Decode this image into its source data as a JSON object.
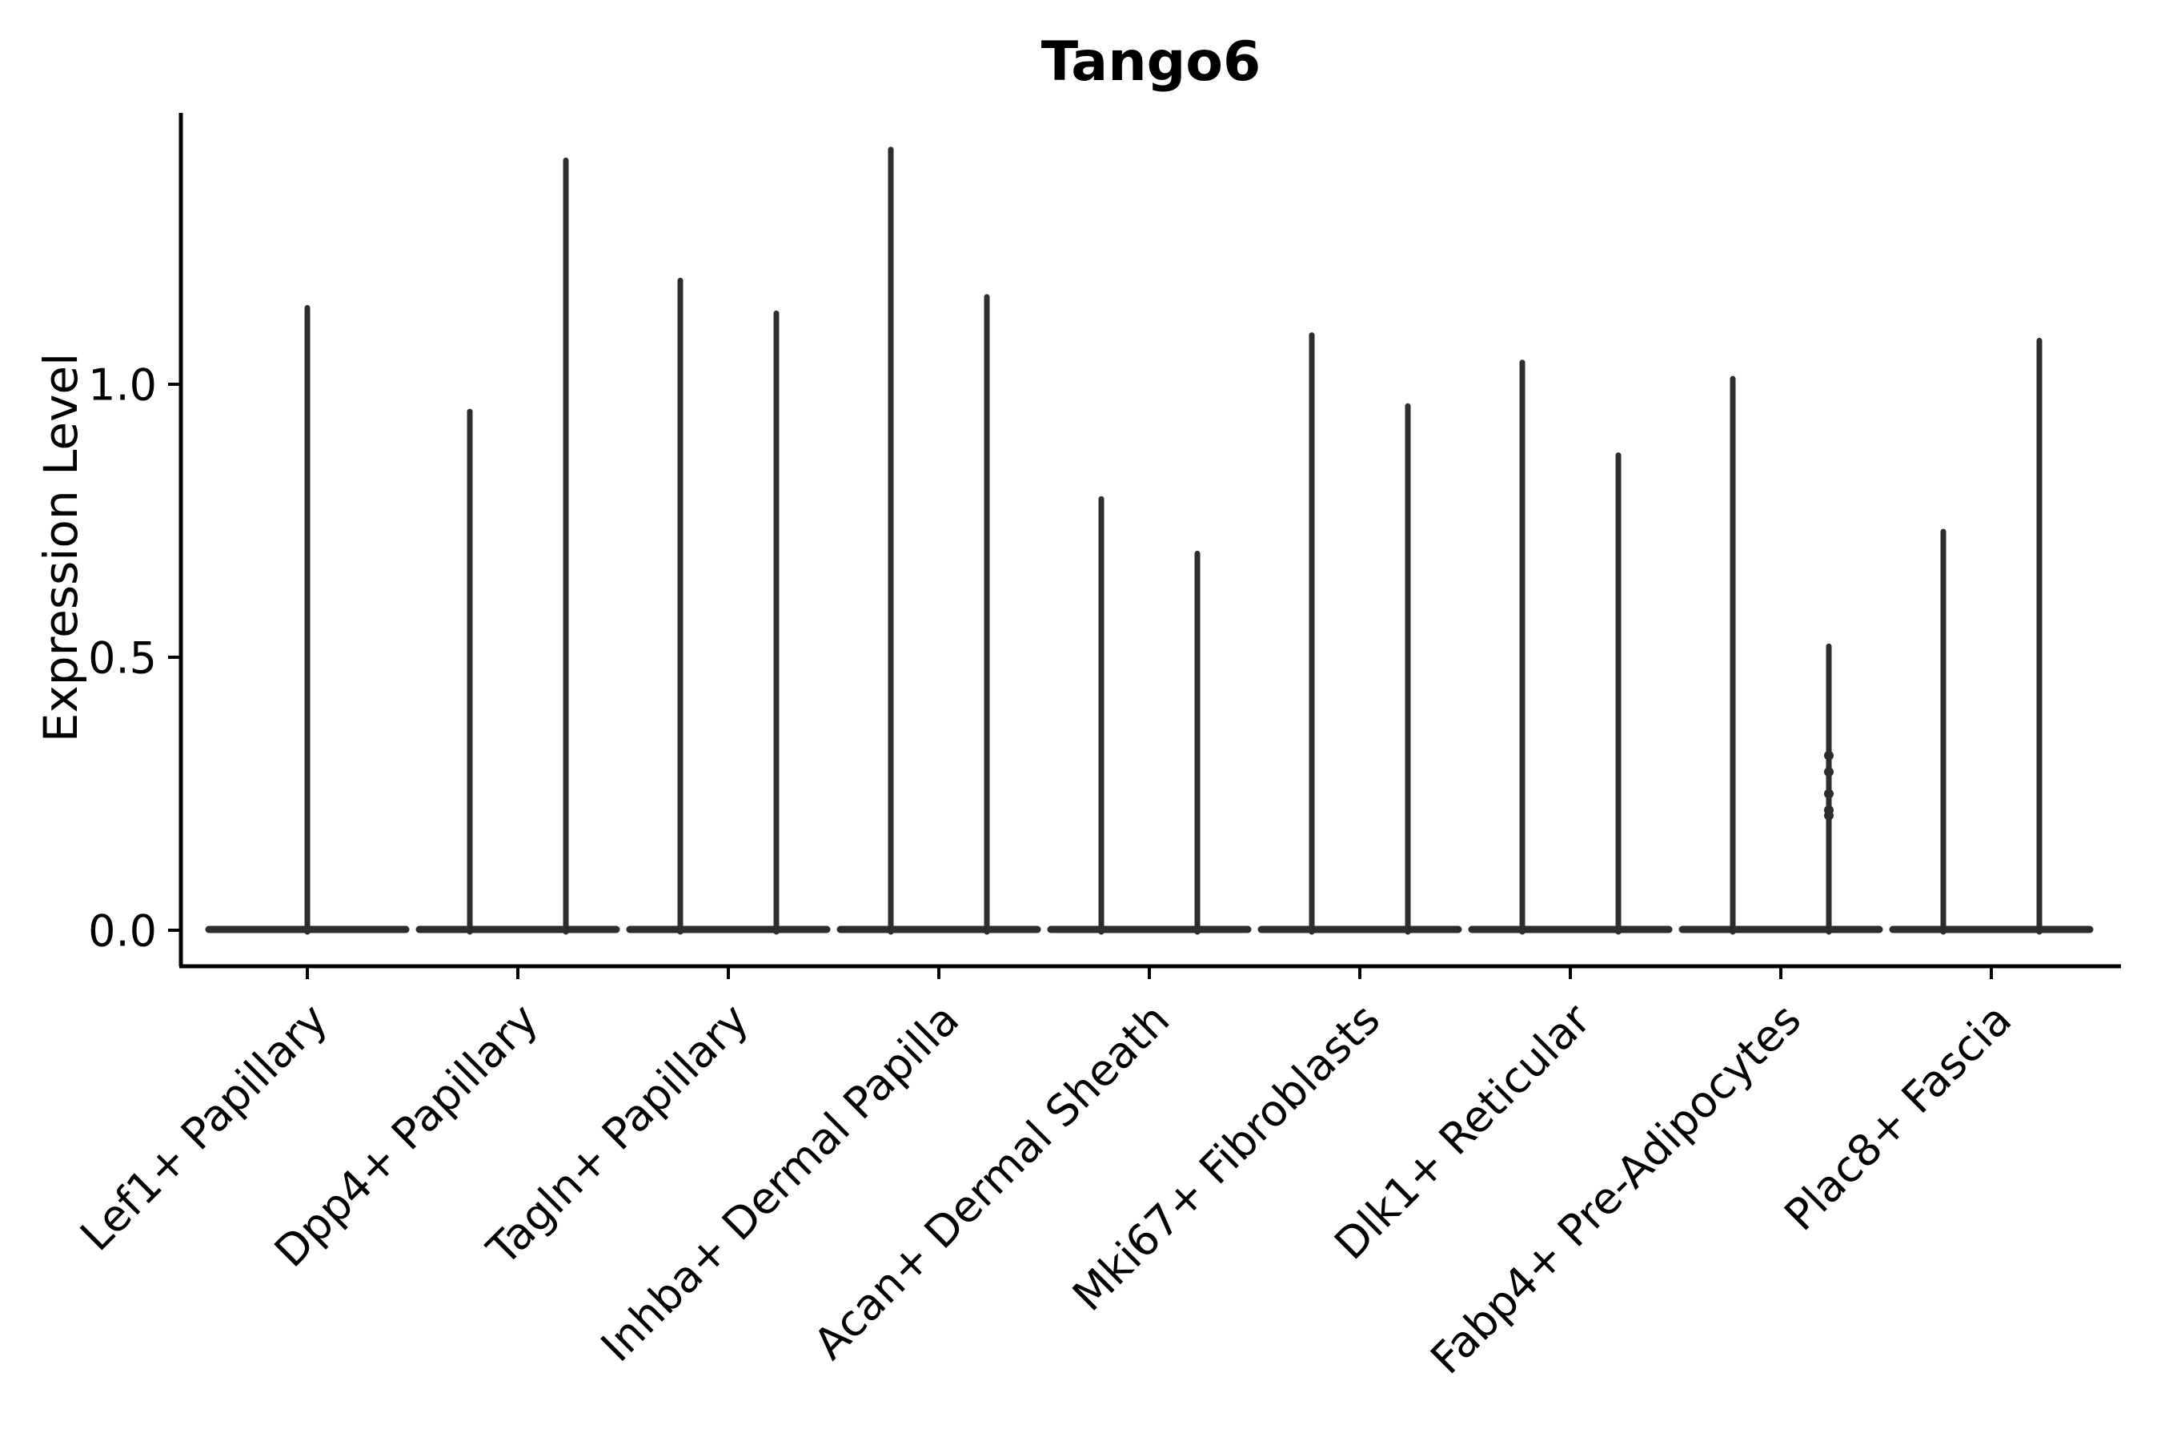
{
  "figure": {
    "title": "Tango6"
  },
  "axes": {
    "ylabel": "Expression Level",
    "ytick_labels": [
      "0.0",
      "0.5",
      "1.0"
    ],
    "ytick_values": [
      0.0,
      0.5,
      1.0
    ],
    "ylim": [
      -0.066,
      1.5
    ]
  },
  "chart_data": {
    "type": "violin",
    "title": "Tango6",
    "xlabel": "",
    "ylabel": "Expression Level",
    "ylim": [
      -0.066,
      1.5
    ],
    "yticks": [
      0.0,
      0.5,
      1.0
    ],
    "legend": "none",
    "grid": false,
    "description": "Violin plot of Tango6 expression; each cell-type category shows flat zero-expression violin bodies with thin spikes reaching the maximum expression value per violin group.",
    "categories": [
      "Lef1+ Papillary",
      "Dpp4+ Papillary",
      "Tagln+ Papillary",
      "Inhba+ Dermal Papilla",
      "Acan+ Dermal Sheath",
      "Mki67+ Fibroblasts",
      "Dlk1+ Reticular",
      "Fabp4+ Pre-Adipocytes",
      "Plac8+ Fascia"
    ],
    "violins": [
      {
        "category": "Lef1+ Papillary",
        "spikes": [
          {
            "offset": 0,
            "max": 1.14
          }
        ]
      },
      {
        "category": "Dpp4+ Papillary",
        "spikes": [
          {
            "offset": -1,
            "max": 0.95
          },
          {
            "offset": 1,
            "max": 1.41
          }
        ]
      },
      {
        "category": "Tagln+ Papillary",
        "spikes": [
          {
            "offset": -1,
            "max": 1.19
          },
          {
            "offset": 1,
            "max": 1.13
          }
        ]
      },
      {
        "category": "Inhba+ Dermal Papilla",
        "spikes": [
          {
            "offset": -1,
            "max": 1.43
          },
          {
            "offset": 1,
            "max": 1.16
          }
        ]
      },
      {
        "category": "Acan+ Dermal Sheath",
        "spikes": [
          {
            "offset": -1,
            "max": 0.79
          },
          {
            "offset": 1,
            "max": 0.69
          }
        ]
      },
      {
        "category": "Mki67+ Fibroblasts",
        "spikes": [
          {
            "offset": -1,
            "max": 1.09
          },
          {
            "offset": 1,
            "max": 0.96
          }
        ]
      },
      {
        "category": "Dlk1+ Reticular",
        "spikes": [
          {
            "offset": -1,
            "max": 1.04
          },
          {
            "offset": 1,
            "max": 0.87
          }
        ]
      },
      {
        "category": "Fabp4+ Pre-Adipocytes",
        "spikes": [
          {
            "offset": -1,
            "max": 1.01
          },
          {
            "offset": 1,
            "max": 0.52,
            "points": [
              0.32,
              0.29,
              0.25,
              0.22,
              0.21
            ]
          }
        ]
      },
      {
        "category": "Plac8+ Fascia",
        "spikes": [
          {
            "offset": -1,
            "max": 0.73
          },
          {
            "offset": 1,
            "max": 1.08
          }
        ]
      }
    ],
    "colors": {
      "violin": "#2d2d2d",
      "axis": "#000000",
      "text": "#000000",
      "background": "#ffffff"
    }
  }
}
